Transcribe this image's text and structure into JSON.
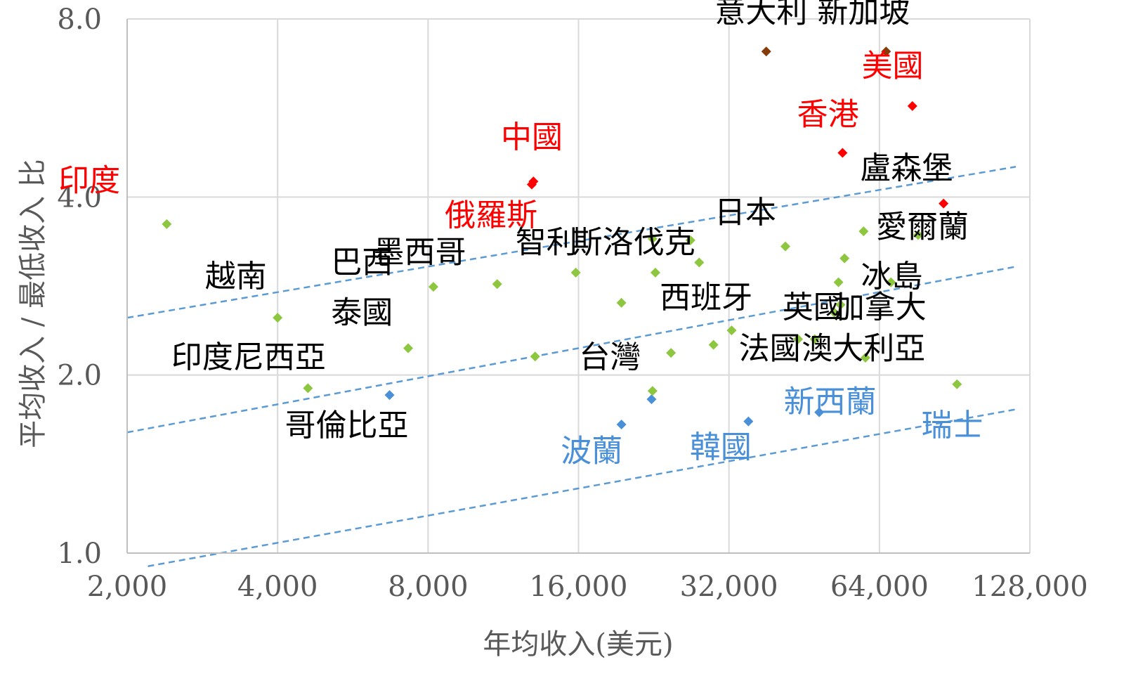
{
  "chart_data": {
    "type": "scatter",
    "title": "",
    "xlabel": "年均收入(美元)",
    "ylabel": "平均收入 / 最低收入 比",
    "x_scale": "log2",
    "y_scale": "log2",
    "xlim": [
      2000,
      128000
    ],
    "ylim": [
      1.0,
      8.0
    ],
    "x_ticks": [
      "2,000",
      "4,000",
      "8,000",
      "16,000",
      "32,000",
      "64,000",
      "128,000"
    ],
    "y_ticks": [
      "1.0",
      "2.0",
      "4.0",
      "8.0"
    ],
    "grid": true,
    "colors": {
      "green": "#8DC63F",
      "red": "#FF0000",
      "blue": "#4A90D9",
      "brown": "#843C0C",
      "trend": "#5B9BD5",
      "text": "#000000",
      "axis": "#595959",
      "grid": "#D9D9D9"
    },
    "points": [
      {
        "x": 2400,
        "y": 3.6,
        "color": "green"
      },
      {
        "x": 4000,
        "y": 2.5,
        "color": "green"
      },
      {
        "x": 4600,
        "y": 1.9,
        "color": "green"
      },
      {
        "x": 6700,
        "y": 1.85,
        "color": "blue"
      },
      {
        "x": 7300,
        "y": 2.22,
        "color": "green"
      },
      {
        "x": 8200,
        "y": 2.82,
        "color": "green"
      },
      {
        "x": 11000,
        "y": 2.85,
        "color": "green"
      },
      {
        "x": 12900,
        "y": 4.2,
        "color": "red"
      },
      {
        "x": 13000,
        "y": 4.25,
        "color": "red"
      },
      {
        "x": 13100,
        "y": 2.15,
        "color": "green"
      },
      {
        "x": 15800,
        "y": 2.98,
        "color": "green"
      },
      {
        "x": 19500,
        "y": 1.65,
        "color": "blue"
      },
      {
        "x": 19500,
        "y": 2.65,
        "color": "green"
      },
      {
        "x": 22400,
        "y": 1.82,
        "color": "blue"
      },
      {
        "x": 22500,
        "y": 1.88,
        "color": "green"
      },
      {
        "x": 22500,
        "y": 3.4,
        "color": "green"
      },
      {
        "x": 22800,
        "y": 2.98,
        "color": "green"
      },
      {
        "x": 24500,
        "y": 2.18,
        "color": "green"
      },
      {
        "x": 26800,
        "y": 3.38,
        "color": "green"
      },
      {
        "x": 27900,
        "y": 3.1,
        "color": "green"
      },
      {
        "x": 29800,
        "y": 2.25,
        "color": "green"
      },
      {
        "x": 32400,
        "y": 2.38,
        "color": "green"
      },
      {
        "x": 35000,
        "y": 1.67,
        "color": "blue"
      },
      {
        "x": 38000,
        "y": 7.05,
        "color": "brown"
      },
      {
        "x": 41500,
        "y": 3.3,
        "color": "green"
      },
      {
        "x": 44000,
        "y": 2.3,
        "color": "green"
      },
      {
        "x": 47500,
        "y": 2.3,
        "color": "green"
      },
      {
        "x": 48500,
        "y": 1.73,
        "color": "blue"
      },
      {
        "x": 52000,
        "y": 2.55,
        "color": "green"
      },
      {
        "x": 53000,
        "y": 2.87,
        "color": "green"
      },
      {
        "x": 53500,
        "y": 2.63,
        "color": "green"
      },
      {
        "x": 54000,
        "y": 4.75,
        "color": "red"
      },
      {
        "x": 54500,
        "y": 3.15,
        "color": "green"
      },
      {
        "x": 59500,
        "y": 3.5,
        "color": "green"
      },
      {
        "x": 60000,
        "y": 2.14,
        "color": "green"
      },
      {
        "x": 66000,
        "y": 7.05,
        "color": "brown"
      },
      {
        "x": 67500,
        "y": 2.87,
        "color": "green"
      },
      {
        "x": 74500,
        "y": 5.7,
        "color": "red"
      },
      {
        "x": 76500,
        "y": 3.45,
        "color": "green"
      },
      {
        "x": 86000,
        "y": 3.9,
        "color": "red"
      },
      {
        "x": 91500,
        "y": 1.93,
        "color": "green"
      }
    ],
    "trendlines": [
      {
        "x": [
          2000,
          120000
        ],
        "y": [
          2.5,
          4.5
        ]
      },
      {
        "x": [
          2000,
          120000
        ],
        "y": [
          1.6,
          3.05
        ]
      },
      {
        "x": [
          2200,
          120000
        ],
        "y": [
          0.95,
          1.75
        ]
      }
    ],
    "labels": [
      {
        "text": "意大利 新加坡",
        "x": 47000,
        "y": 7.9,
        "color": "black"
      },
      {
        "text": "美國",
        "x": 68000,
        "y": 6.4,
        "color": "red"
      },
      {
        "text": "香港",
        "x": 50500,
        "y": 5.3,
        "color": "red"
      },
      {
        "text": "盧森堡",
        "x": 72500,
        "y": 4.3,
        "color": "black"
      },
      {
        "text": "中國",
        "x": 12900,
        "y": 4.85,
        "color": "red"
      },
      {
        "text": "印度",
        "x": 1680,
        "y": 4.1,
        "color": "red"
      },
      {
        "text": "俄羅斯",
        "x": 10700,
        "y": 3.58,
        "color": "red"
      },
      {
        "text": "日本",
        "x": 34500,
        "y": 3.62,
        "color": "black"
      },
      {
        "text": "愛爾蘭",
        "x": 78000,
        "y": 3.42,
        "color": "black"
      },
      {
        "text": "墨西哥",
        "x": 7700,
        "y": 3.1,
        "color": "black"
      },
      {
        "text": "智利",
        "x": 13800,
        "y": 3.22,
        "color": "black"
      },
      {
        "text": "斯洛伐克",
        "x": 20600,
        "y": 3.22,
        "color": "black"
      },
      {
        "text": "巴西",
        "x": 5900,
        "y": 2.98,
        "color": "black"
      },
      {
        "text": "越南",
        "x": 3300,
        "y": 2.82,
        "color": "black"
      },
      {
        "text": "西班牙",
        "x": 28800,
        "y": 2.6,
        "color": "black"
      },
      {
        "text": "冰島",
        "x": 67800,
        "y": 2.82,
        "color": "black"
      },
      {
        "text": "泰國",
        "x": 5900,
        "y": 2.45,
        "color": "black"
      },
      {
        "text": "英國",
        "x": 47200,
        "y": 2.5,
        "color": "black"
      },
      {
        "text": "加拿大",
        "x": 64200,
        "y": 2.5,
        "color": "black"
      },
      {
        "text": "印度尼西亞",
        "x": 3500,
        "y": 2.06,
        "color": "black"
      },
      {
        "text": "台灣",
        "x": 18500,
        "y": 2.06,
        "color": "black"
      },
      {
        "text": "法國",
        "x": 38600,
        "y": 2.13,
        "color": "black"
      },
      {
        "text": "澳大利亞",
        "x": 59500,
        "y": 2.13,
        "color": "black"
      },
      {
        "text": "新西蘭",
        "x": 51000,
        "y": 1.73,
        "color": "blue"
      },
      {
        "text": "瑞士",
        "x": 89500,
        "y": 1.58,
        "color": "blue"
      },
      {
        "text": "哥倫比亞",
        "x": 5500,
        "y": 1.58,
        "color": "black"
      },
      {
        "text": "波蘭",
        "x": 17000,
        "y": 1.43,
        "color": "blue"
      },
      {
        "text": "韓國",
        "x": 30800,
        "y": 1.45,
        "color": "blue"
      }
    ]
  }
}
